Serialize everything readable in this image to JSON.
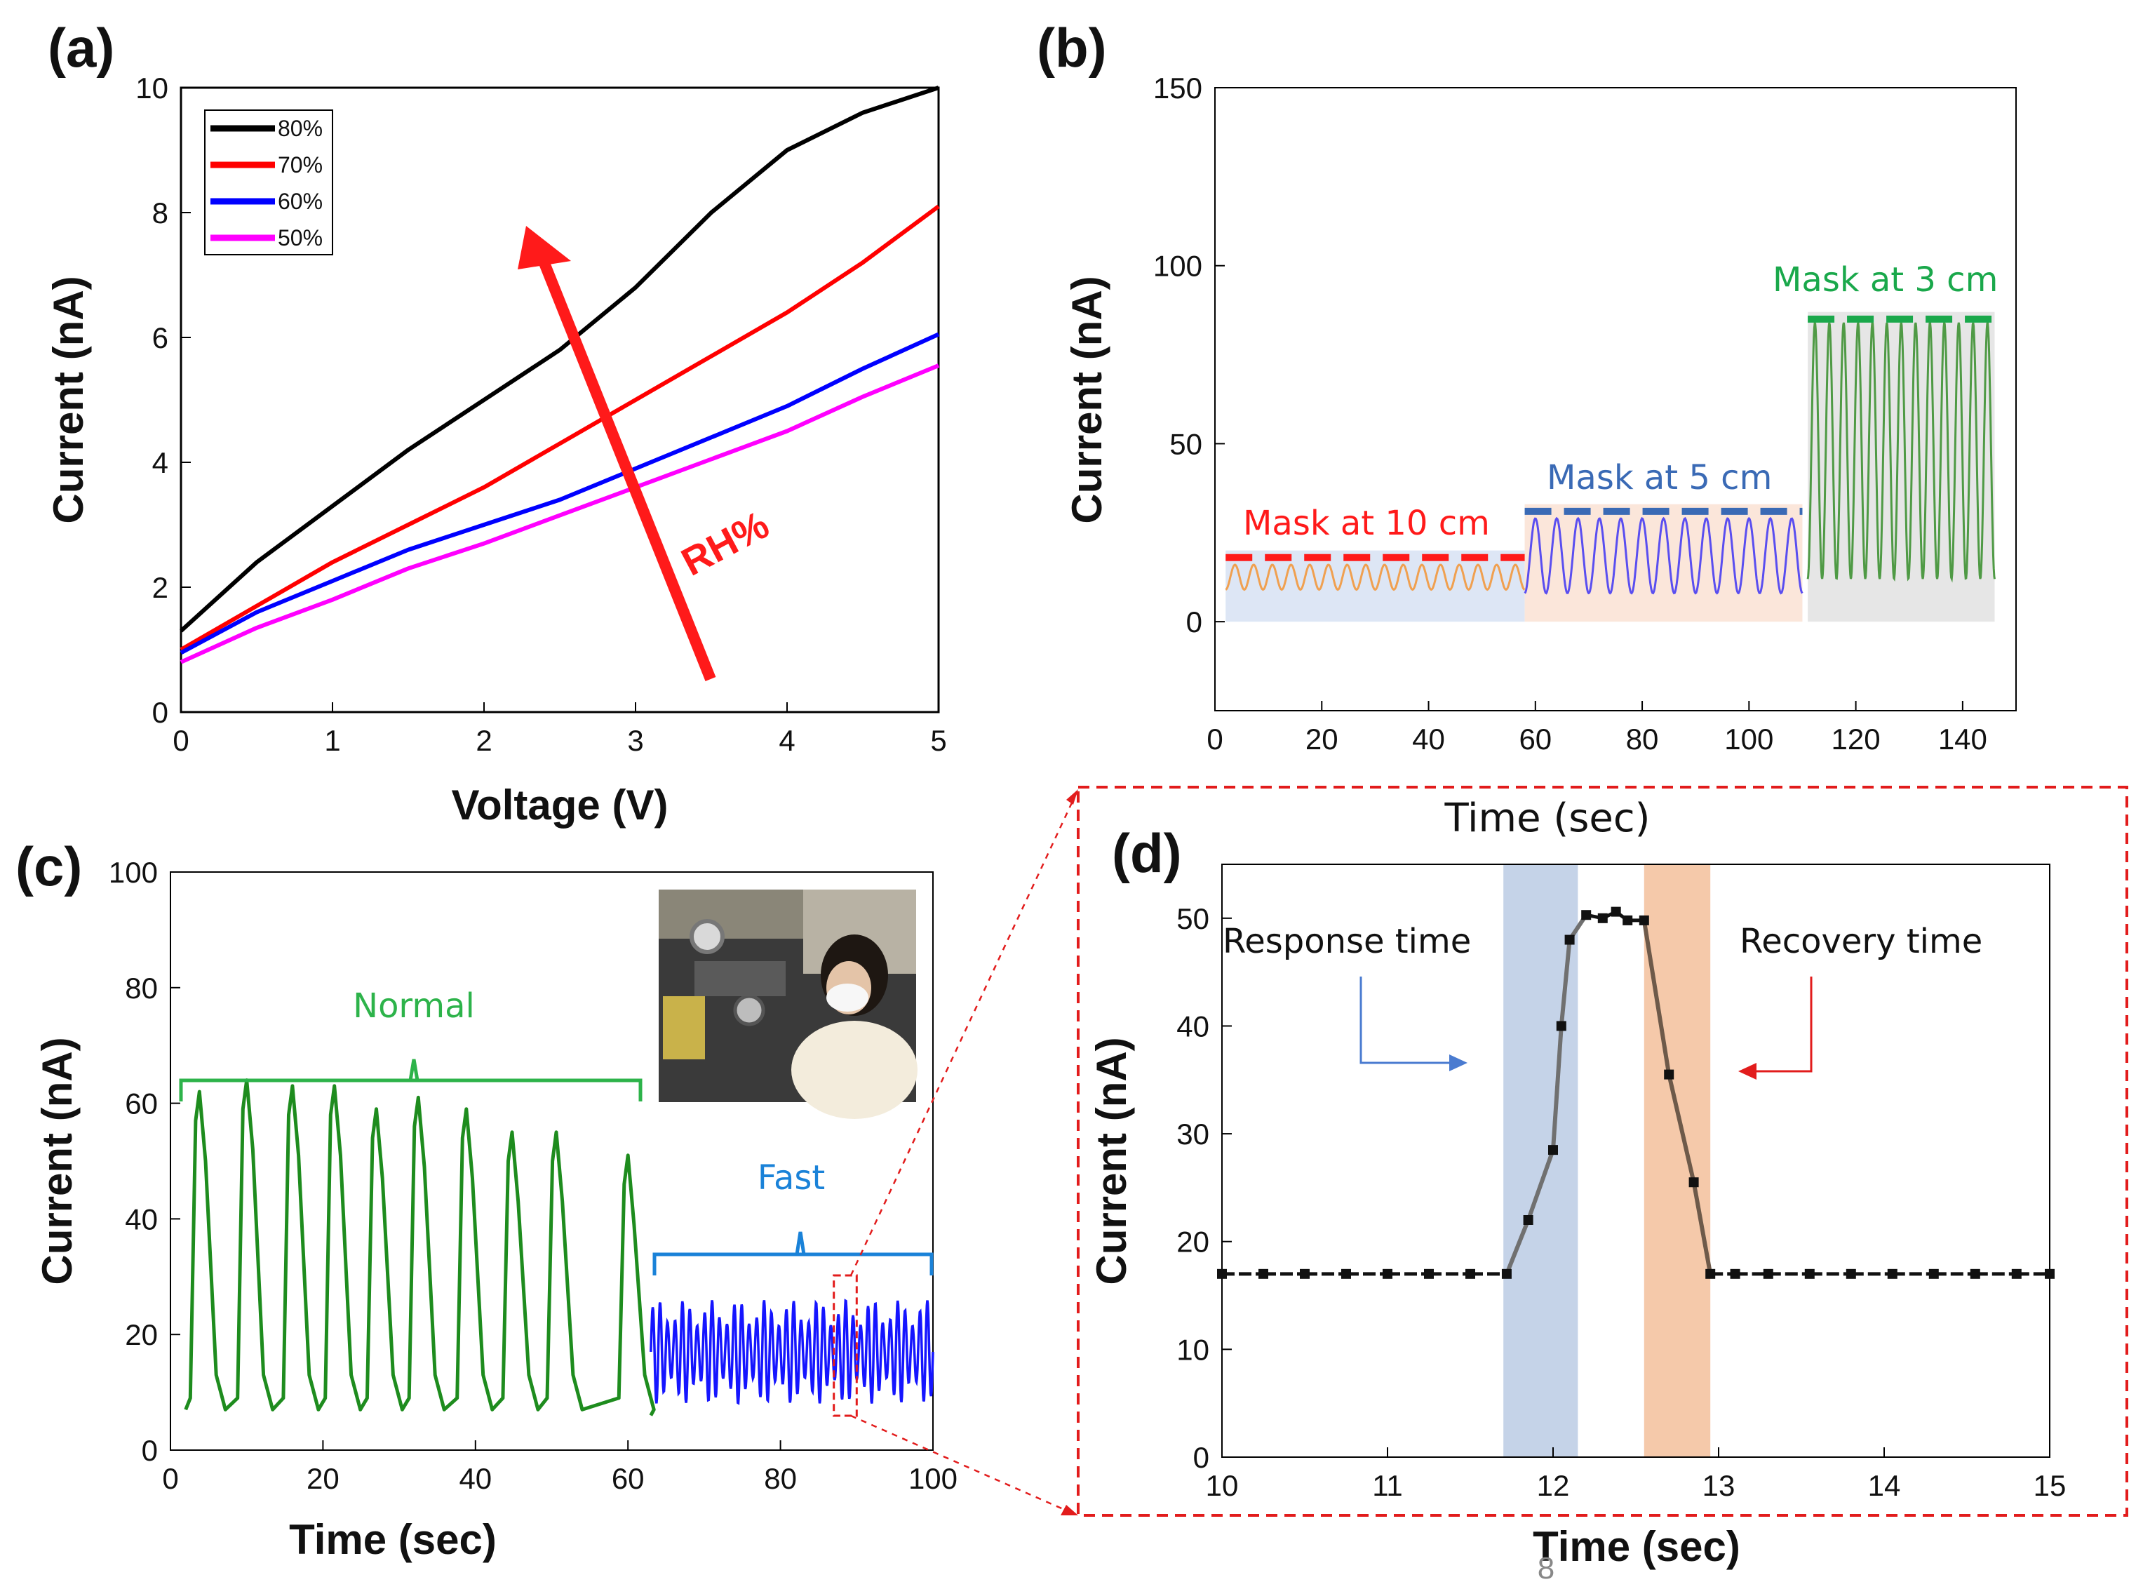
{
  "chart_data": [
    {
      "panel": "(a)",
      "type": "line",
      "xlabel": "Voltage (V)",
      "ylabel": "Current (nA)",
      "xlim": [
        0,
        5
      ],
      "ylim": [
        0,
        10
      ],
      "xticks": [
        0,
        1,
        2,
        3,
        4,
        5
      ],
      "yticks": [
        0,
        2,
        4,
        6,
        8,
        10
      ],
      "legend_position": "top-left",
      "annotations": [
        {
          "text": "RH%",
          "color": "#ff1a1a",
          "arrow": "increasing RH"
        }
      ],
      "series": [
        {
          "name": "80%",
          "color": "#000000",
          "x": [
            0,
            0.5,
            1,
            1.5,
            2,
            2.5,
            3,
            3.5,
            4,
            4.5,
            5
          ],
          "y": [
            1.3,
            2.4,
            3.3,
            4.2,
            5.0,
            5.8,
            6.8,
            8.0,
            9.0,
            9.6,
            10.1
          ]
        },
        {
          "name": "70%",
          "color": "#ff0000",
          "x": [
            0,
            0.5,
            1,
            1.5,
            2,
            2.5,
            3,
            3.5,
            4,
            4.5,
            5
          ],
          "y": [
            1.0,
            1.7,
            2.4,
            3.0,
            3.6,
            4.3,
            5.0,
            5.7,
            6.4,
            7.2,
            8.1
          ]
        },
        {
          "name": "60%",
          "color": "#0000ff",
          "x": [
            0,
            0.5,
            1,
            1.5,
            2,
            2.5,
            3,
            3.5,
            4,
            4.5,
            5
          ],
          "y": [
            0.95,
            1.6,
            2.1,
            2.6,
            3.0,
            3.4,
            3.9,
            4.4,
            4.9,
            5.5,
            6.05
          ]
        },
        {
          "name": "50%",
          "color": "#ff00ff",
          "x": [
            0,
            0.5,
            1,
            1.5,
            2,
            2.5,
            3,
            3.5,
            4,
            4.5,
            5
          ],
          "y": [
            0.8,
            1.35,
            1.8,
            2.3,
            2.7,
            3.15,
            3.6,
            4.05,
            4.5,
            5.05,
            5.55
          ]
        }
      ]
    },
    {
      "panel": "(b)",
      "type": "line",
      "xlabel": "Time (sec)",
      "ylabel": "Current (nA)",
      "xlim": [
        0,
        150
      ],
      "ylim": [
        -25,
        150
      ],
      "xticks": [
        0,
        20,
        40,
        60,
        80,
        100,
        120,
        140
      ],
      "yticks": [
        0,
        50,
        100,
        150
      ],
      "series": [
        {
          "name": "Mask at 10 cm",
          "label_color": "#ff1a1a",
          "color": "#f0a050",
          "t_start": 2,
          "t_end": 58,
          "cycles": 16,
          "min": 9,
          "max": 16,
          "level": 18,
          "band_color": "#dde6f5"
        },
        {
          "name": "Mask at 5 cm",
          "label_color": "#3a6ab5",
          "color": "#5a4ef0",
          "t_start": 58,
          "t_end": 110,
          "cycles": 13,
          "min": 8,
          "max": 29,
          "level": 31,
          "band_color": "#fbe6da"
        },
        {
          "name": "Mask at 3 cm",
          "label_color": "#1aa84b",
          "color": "#4f9a45",
          "t_start": 111,
          "t_end": 146,
          "cycles": 13,
          "min": 12,
          "max": 84,
          "level": 85,
          "band_color": "#e6e6e6"
        }
      ]
    },
    {
      "panel": "(c)",
      "type": "line",
      "xlabel": "Time (sec)",
      "ylabel": "Current (nA)",
      "xlim": [
        0,
        100
      ],
      "ylim": [
        0,
        100
      ],
      "xticks": [
        0,
        20,
        40,
        60,
        80,
        100
      ],
      "yticks": [
        0,
        20,
        40,
        60,
        80,
        100
      ],
      "series": [
        {
          "name": "Normal",
          "color": "#1e8c1e",
          "label_color": "#2db34a",
          "x_range": [
            2,
            63
          ],
          "peaks_x": [
            3.8,
            10,
            16,
            21.5,
            27,
            32.5,
            38.8,
            44.8,
            50.6,
            60
          ],
          "peaks_y": [
            62,
            64,
            63,
            63,
            59,
            61,
            59,
            55,
            55,
            51
          ],
          "baseline": 7
        },
        {
          "name": "Fast",
          "color": "#1515ff",
          "label_color": "#1a82d8",
          "x_range": [
            63,
            100
          ],
          "cycles": 38,
          "min": 8,
          "max": 26
        }
      ],
      "zoom_box_x": [
        87,
        90
      ]
    },
    {
      "panel": "(d)",
      "type": "line",
      "xlabel": "Time (sec)",
      "ylabel": "Current (nA)",
      "xlim": [
        10,
        15
      ],
      "ylim": [
        0,
        55
      ],
      "xticks": [
        10,
        11,
        12,
        13,
        14,
        15
      ],
      "yticks": [
        0,
        10,
        20,
        30,
        40,
        50
      ],
      "annotations": [
        {
          "text": "Response time",
          "x_range": [
            11.7,
            12.15
          ],
          "band_color": "#c5d3e8",
          "arrow_color": "#4a7bd0"
        },
        {
          "text": "Recovery time",
          "x_range": [
            12.55,
            12.95
          ],
          "band_color": "#f5c9aa",
          "arrow_color": "#e21c1c"
        }
      ],
      "series": [
        {
          "name": "",
          "color": "#111111",
          "x": [
            10,
            10.25,
            10.5,
            10.75,
            11,
            11.25,
            11.5,
            11.72,
            11.85,
            12.0,
            12.05,
            12.1,
            12.2,
            12.3,
            12.38,
            12.45,
            12.55,
            12.7,
            12.85,
            12.95,
            13.1,
            13.3,
            13.55,
            13.8,
            14.05,
            14.3,
            14.55,
            14.8,
            15
          ],
          "y": [
            17,
            17,
            17,
            17,
            17,
            17,
            17,
            17,
            22,
            28.5,
            40,
            48,
            50.3,
            50,
            50.6,
            49.8,
            49.8,
            35.5,
            25.5,
            17,
            17,
            17,
            17,
            17,
            17,
            17,
            17,
            17,
            17
          ]
        }
      ]
    }
  ],
  "footer_digit": "8"
}
